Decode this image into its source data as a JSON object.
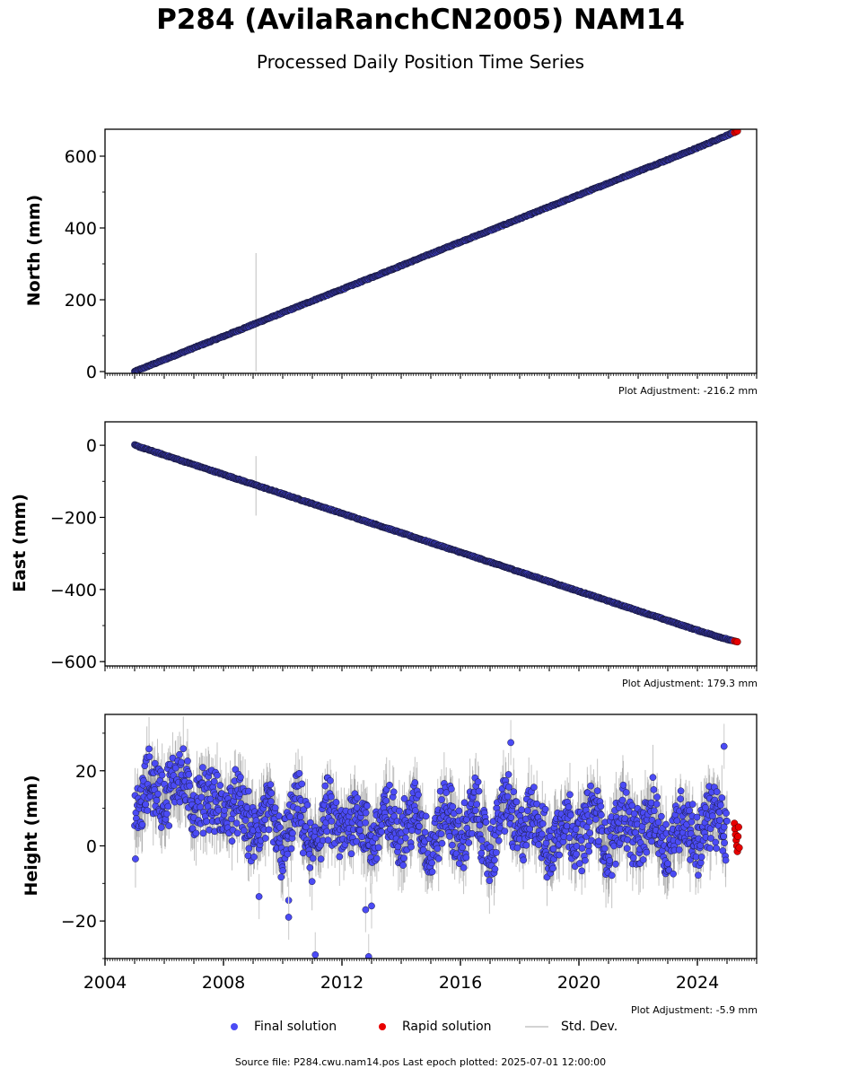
{
  "header": {
    "title": "P284 (AvilaRanchCN2005) NAM14",
    "subtitle": "Processed Daily Position Time Series"
  },
  "footer": {
    "source": "Source file: P284.cwu.nam14.pos  Last epoch plotted: 2025-07-01 12:00:00"
  },
  "colors": {
    "final": "#4b4bf5",
    "rapid": "#e80000",
    "stddev": "#d3d3d3",
    "edge": "#1a1a40"
  },
  "chart_data": [
    {
      "type": "scatter",
      "ylabel": "North (mm)",
      "plot_adjustment": "Plot Adjustment: -216.2 mm",
      "xlim": [
        2004.0,
        2026.0
      ],
      "ylim": [
        -5,
        675
      ],
      "yticks": [
        0,
        200,
        400,
        600
      ],
      "ytick_labels": [
        "0",
        "200",
        "400",
        "600"
      ],
      "final_solution": {
        "x": [
          2005.0,
          2006.0,
          2007.0,
          2008.0,
          2009.0,
          2010.0,
          2011.0,
          2012.0,
          2013.0,
          2014.0,
          2015.0,
          2016.0,
          2017.0,
          2018.0,
          2019.0,
          2020.0,
          2021.0,
          2022.0,
          2023.0,
          2024.0,
          2025.2
        ],
        "y": [
          0,
          33,
          66,
          98,
          131,
          164,
          197,
          229,
          262,
          295,
          328,
          361,
          393,
          426,
          459,
          492,
          525,
          558,
          590,
          623,
          665
        ]
      },
      "rapid_solution": {
        "x": [
          2025.25,
          2025.3,
          2025.35
        ],
        "y": [
          666,
          668,
          670
        ]
      },
      "std_dev_spikes": [
        {
          "x": 2009.1,
          "low": 0,
          "high": 330
        }
      ]
    },
    {
      "type": "scatter",
      "ylabel": "East (mm)",
      "plot_adjustment": "Plot Adjustment: 179.3 mm",
      "xlim": [
        2004.0,
        2026.0
      ],
      "ylim": [
        -612,
        65
      ],
      "yticks": [
        0,
        -200,
        -400,
        -600
      ],
      "ytick_labels": [
        "0",
        "−200",
        "−400",
        "−600"
      ],
      "final_solution": {
        "x": [
          2005.0,
          2006.0,
          2007.0,
          2008.0,
          2009.0,
          2010.0,
          2011.0,
          2012.0,
          2013.0,
          2014.0,
          2015.0,
          2016.0,
          2017.0,
          2018.0,
          2019.0,
          2020.0,
          2021.0,
          2022.0,
          2023.0,
          2024.0,
          2025.2
        ],
        "y": [
          0,
          -27,
          -54,
          -81,
          -108,
          -135,
          -162,
          -189,
          -216,
          -243,
          -270,
          -297,
          -324,
          -351,
          -378,
          -405,
          -432,
          -459,
          -486,
          -513,
          -543
        ]
      },
      "rapid_solution": {
        "x": [
          2025.25,
          2025.3,
          2025.35
        ],
        "y": [
          -543,
          -544,
          -545
        ]
      },
      "std_dev_spikes": [
        {
          "x": 2009.1,
          "low": -195,
          "high": -30
        }
      ]
    },
    {
      "type": "scatter",
      "ylabel": "Height (mm)",
      "plot_adjustment": "Plot Adjustment: -5.9 mm",
      "xlim": [
        2004.0,
        2026.0
      ],
      "ylim": [
        -30,
        35
      ],
      "yticks": [
        20,
        0,
        -20
      ],
      "ytick_labels": [
        "20",
        "0",
        "−20"
      ],
      "xticks": [
        2004,
        2008,
        2012,
        2016,
        2020,
        2024
      ],
      "xtick_labels": [
        "2004",
        "2008",
        "2012",
        "2016",
        "2020",
        "2024"
      ],
      "final_solution": {
        "x": [
          2005.0,
          2005.5,
          2006.0,
          2006.5,
          2007.0,
          2007.5,
          2008.0,
          2008.5,
          2009.0,
          2009.5,
          2010.0,
          2010.5,
          2011.0,
          2011.5,
          2012.0,
          2012.5,
          2013.0,
          2013.5,
          2014.0,
          2014.5,
          2015.0,
          2015.5,
          2016.0,
          2016.5,
          2017.0,
          2017.5,
          2018.0,
          2018.5,
          2019.0,
          2019.5,
          2020.0,
          2020.5,
          2021.0,
          2021.5,
          2022.0,
          2022.5,
          2023.0,
          2023.5,
          2024.0,
          2024.5,
          2025.0
        ],
        "y": [
          5,
          18,
          12,
          20,
          10,
          14,
          8,
          12,
          2,
          10,
          -2,
          12,
          -3,
          10,
          2,
          10,
          0,
          9,
          3,
          10,
          -3,
          11,
          0,
          11,
          -4,
          13,
          2,
          10,
          -3,
          9,
          1,
          10,
          -2,
          10,
          0,
          9,
          -2,
          9,
          0,
          10,
          2
        ],
        "outliers": [
          {
            "x": 2009.2,
            "y": -13.5
          },
          {
            "x": 2010.2,
            "y": -14.5
          },
          {
            "x": 2010.2,
            "y": -19
          },
          {
            "x": 2011.1,
            "y": -29
          },
          {
            "x": 2012.9,
            "y": -29.5
          },
          {
            "x": 2012.8,
            "y": -17
          },
          {
            "x": 2013.0,
            "y": -16
          },
          {
            "x": 2017.7,
            "y": 27.5
          },
          {
            "x": 2024.9,
            "y": 26.5
          }
        ]
      },
      "rapid_solution": {
        "x": [
          2025.25,
          2025.27,
          2025.29,
          2025.31,
          2025.33,
          2025.35,
          2025.37,
          2025.39,
          2025.41
        ],
        "y": [
          6,
          4.5,
          3,
          1.5,
          0,
          -1.5,
          2.5,
          5,
          -0.5
        ]
      }
    }
  ],
  "legend": {
    "final": "Final solution",
    "rapid": "Rapid solution",
    "std": "Std. Dev."
  }
}
